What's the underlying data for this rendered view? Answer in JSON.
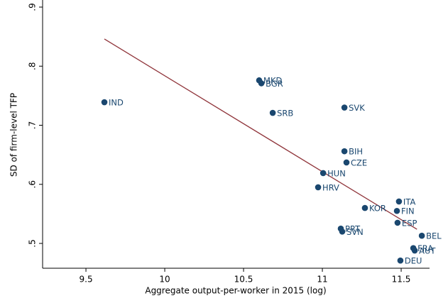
{
  "chart_data": {
    "type": "scatter",
    "x_label": "Aggregate output-per-worker in 2015 (log)",
    "y_label": "SD of firm-level TFP",
    "xlim": [
      9.225,
      11.68
    ],
    "ylim": [
      0.458,
      0.912
    ],
    "xticks": [
      9.5,
      10,
      10.5,
      11,
      11.5
    ],
    "yticks": [
      {
        "value": 0.5,
        "label": ".5"
      },
      {
        "value": 0.6,
        "label": ".6"
      },
      {
        "value": 0.7,
        "label": ".7"
      },
      {
        "value": 0.8,
        "label": ".8"
      },
      {
        "value": 0.9,
        "label": ".9"
      }
    ],
    "series": [
      {
        "color": "#1a476f",
        "labels": [
          "IND",
          "MKD",
          "BGR",
          "SRB",
          "SVK",
          "BIH",
          "CZE",
          "HUN",
          "HRV",
          "KOR",
          "ITA",
          "FIN",
          "ESP",
          "PRT",
          "SVN",
          "BEL",
          "FRA",
          "AUT",
          "DEU"
        ],
        "x": [
          9.617,
          10.599,
          10.613,
          10.685,
          11.14,
          11.14,
          11.153,
          11.005,
          10.973,
          11.27,
          11.486,
          11.473,
          11.477,
          11.117,
          11.126,
          11.631,
          11.577,
          11.586,
          11.495
        ],
        "values": [
          0.739,
          0.776,
          0.771,
          0.721,
          0.73,
          0.656,
          0.637,
          0.619,
          0.595,
          0.56,
          0.571,
          0.555,
          0.535,
          0.525,
          0.52,
          0.513,
          0.492,
          0.488,
          0.471
        ]
      }
    ],
    "fit_line": {
      "color": "#90353b",
      "x": [
        9.617,
        11.6
      ],
      "values": [
        0.846,
        0.524
      ]
    }
  }
}
